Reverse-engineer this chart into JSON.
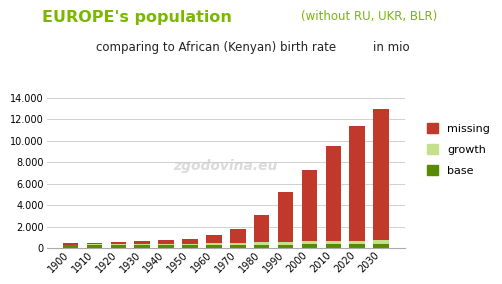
{
  "years": [
    1900,
    1910,
    1920,
    1930,
    1940,
    1950,
    1960,
    1970,
    1980,
    1990,
    2000,
    2010,
    2020,
    2030
  ],
  "base": [
    270,
    275,
    278,
    282,
    286,
    290,
    295,
    300,
    310,
    320,
    330,
    340,
    350,
    360
  ],
  "growth": [
    50,
    55,
    60,
    70,
    80,
    100,
    130,
    170,
    210,
    250,
    290,
    310,
    330,
    350
  ],
  "missing": [
    130,
    170,
    210,
    280,
    380,
    490,
    825,
    1330,
    2530,
    4700,
    6650,
    8850,
    10720,
    12290
  ],
  "bar_color_base": "#5a8a00",
  "bar_color_growth": "#c5e08a",
  "bar_color_missing": "#c0392b",
  "title_main": "EUROPE's population",
  "title_sub1": "(without RU, UKR, BLR)",
  "subtitle": "comparing to African (Kenyan) birth rate",
  "subtitle2": "in mio",
  "yticks": [
    0,
    2000,
    4000,
    6000,
    8000,
    10000,
    12000,
    14000
  ],
  "ytick_labels": [
    "0",
    "2.000",
    "4.000",
    "6.000",
    "8.000",
    "10.000",
    "12.000",
    "14.000"
  ],
  "ylim": [
    0,
    14800
  ],
  "bg_color": "#ffffff",
  "grid_color": "#d0d0d0",
  "title_color_main": "#7ab800",
  "title_color_sub": "#7ab800",
  "watermark": "zgodovina.eu",
  "legend_labels": [
    "missing",
    "growth",
    "base"
  ],
  "legend_colors": [
    "#c0392b",
    "#c5e08a",
    "#5a8a00"
  ]
}
